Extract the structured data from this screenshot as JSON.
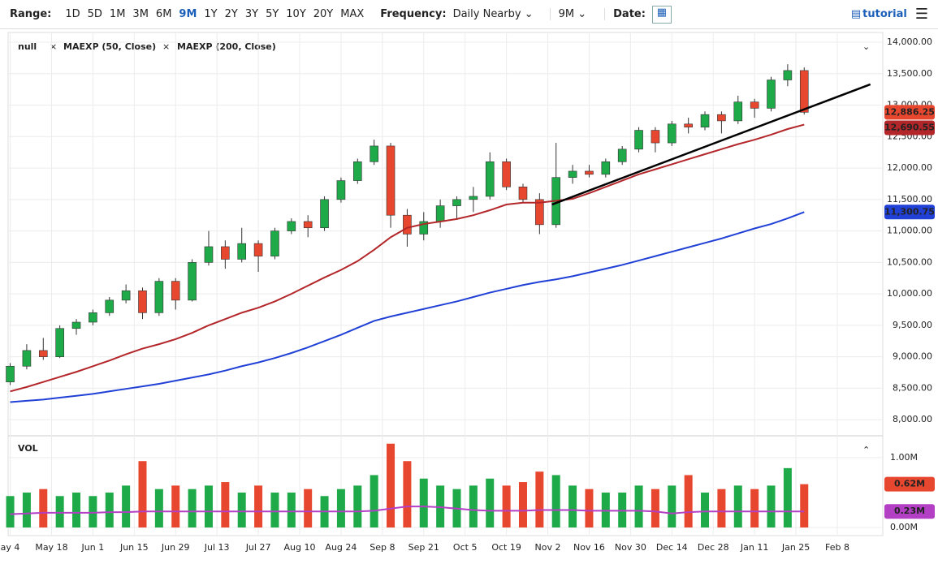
{
  "toolbar": {
    "range_label": "Range:",
    "ranges": [
      "1D",
      "5D",
      "1M",
      "3M",
      "6M",
      "9M",
      "1Y",
      "2Y",
      "3Y",
      "5Y",
      "10Y",
      "20Y",
      "MAX"
    ],
    "active_range": "9M",
    "frequency_label": "Frequency:",
    "frequency": "Daily Nearby",
    "period": "9M",
    "date_label": "Date:",
    "tutorial": "tutorial"
  },
  "chart_data": {
    "type": "candlestick",
    "name": "null",
    "up_color": "#1faa4a",
    "down_color": "#e8472f",
    "grid": true,
    "x": [
      0,
      4,
      8,
      12,
      16,
      20,
      24,
      28,
      32,
      36,
      40,
      44,
      48,
      52,
      56,
      60,
      64,
      68,
      72,
      76,
      80,
      84,
      88,
      92,
      96,
      100,
      104,
      108,
      112,
      116,
      120,
      124,
      128,
      132,
      136,
      140,
      144,
      148,
      152,
      156,
      160,
      164,
      168,
      172,
      176,
      180,
      184,
      188,
      192
    ],
    "open": [
      8600,
      8850,
      9100,
      9000,
      9450,
      9550,
      9700,
      9900,
      10050,
      9700,
      10200,
      9900,
      10500,
      10750,
      10550,
      10800,
      10600,
      11000,
      11150,
      11050,
      11500,
      11800,
      12100,
      12350,
      11250,
      10950,
      11150,
      11400,
      11500,
      11550,
      12100,
      11700,
      11500,
      11100,
      11850,
      11950,
      11900,
      12100,
      12300,
      12600,
      12400,
      12700,
      12650,
      12850,
      12750,
      13050,
      12950,
      13400,
      13550
    ],
    "high": [
      8900,
      9200,
      9300,
      9500,
      9600,
      9750,
      9950,
      10150,
      10100,
      10250,
      10250,
      10550,
      11000,
      10850,
      11050,
      10850,
      11050,
      11200,
      11250,
      11550,
      11850,
      12150,
      12450,
      12400,
      11350,
      11300,
      11500,
      11550,
      11700,
      12250,
      12150,
      11750,
      11600,
      12400,
      12050,
      12050,
      12150,
      12350,
      12650,
      12650,
      12750,
      12800,
      12900,
      12900,
      13150,
      13100,
      13450,
      13650,
      13600
    ],
    "low": [
      8550,
      8800,
      8950,
      8980,
      9350,
      9500,
      9650,
      9850,
      9600,
      9650,
      9750,
      9880,
      10450,
      10400,
      10500,
      10350,
      10550,
      10950,
      10900,
      11000,
      11450,
      11750,
      12050,
      11050,
      10750,
      10850,
      11050,
      11200,
      11300,
      11500,
      11650,
      11450,
      10950,
      11050,
      11750,
      11850,
      11850,
      12050,
      12250,
      12250,
      12350,
      12550,
      12600,
      12550,
      12700,
      12800,
      12900,
      13300,
      12850
    ],
    "close": [
      8850,
      9100,
      9000,
      9450,
      9550,
      9700,
      9900,
      10050,
      9700,
      10200,
      9900,
      10500,
      10750,
      10550,
      10800,
      10600,
      11000,
      11150,
      11050,
      11500,
      11800,
      12100,
      12350,
      11250,
      10950,
      11150,
      11400,
      11500,
      11550,
      12100,
      11700,
      11500,
      11100,
      11850,
      11950,
      11900,
      12100,
      12300,
      12600,
      12400,
      12700,
      12650,
      12850,
      12750,
      13050,
      12950,
      13400,
      13550,
      12886.25
    ],
    "close_labels": [
      null,
      null,
      null,
      null,
      null,
      null,
      null,
      null,
      null,
      null,
      null,
      null,
      null,
      null,
      null,
      null,
      null,
      null,
      null,
      null,
      null,
      null,
      null,
      null,
      null,
      null,
      null,
      null,
      null,
      null,
      null,
      null,
      null,
      null,
      null,
      null,
      null,
      null,
      null,
      null,
      null,
      null,
      null,
      null,
      null,
      null,
      null,
      null,
      "12,886.25"
    ],
    "series": [
      {
        "name": "MAEXP (50, Close)",
        "color": "#b3262a",
        "values": [
          8450,
          8520,
          8600,
          8680,
          8760,
          8850,
          8940,
          9040,
          9130,
          9200,
          9280,
          9380,
          9500,
          9600,
          9700,
          9780,
          9880,
          10000,
          10130,
          10260,
          10380,
          10520,
          10700,
          10900,
          11050,
          11110,
          11150,
          11190,
          11250,
          11330,
          11420,
          11450,
          11450,
          11480,
          11510,
          11600,
          11700,
          11800,
          11900,
          11980,
          12060,
          12140,
          12220,
          12300,
          12380,
          12450,
          12530,
          12620,
          12690.55
        ],
        "value_labels": [
          null,
          null,
          null,
          null,
          null,
          null,
          null,
          null,
          null,
          null,
          null,
          null,
          null,
          null,
          null,
          null,
          null,
          null,
          null,
          null,
          null,
          null,
          null,
          null,
          null,
          null,
          null,
          null,
          null,
          null,
          null,
          null,
          null,
          null,
          null,
          null,
          null,
          null,
          null,
          null,
          null,
          null,
          null,
          null,
          null,
          null,
          null,
          null,
          "12,690.55"
        ]
      },
      {
        "name": "MAEXP (200, Close)",
        "color": "#2141d6",
        "values": [
          8280,
          8300,
          8320,
          8350,
          8380,
          8410,
          8450,
          8490,
          8530,
          8570,
          8620,
          8670,
          8720,
          8780,
          8850,
          8910,
          8980,
          9060,
          9150,
          9250,
          9350,
          9460,
          9570,
          9640,
          9700,
          9760,
          9820,
          9880,
          9950,
          10020,
          10080,
          10140,
          10190,
          10230,
          10280,
          10340,
          10400,
          10460,
          10530,
          10600,
          10670,
          10740,
          10810,
          10880,
          10960,
          11040,
          11110,
          11200,
          11300.75
        ],
        "value_labels": [
          null,
          null,
          null,
          null,
          null,
          null,
          null,
          null,
          null,
          null,
          null,
          null,
          null,
          null,
          null,
          null,
          null,
          null,
          null,
          null,
          null,
          null,
          null,
          null,
          null,
          null,
          null,
          null,
          null,
          null,
          null,
          null,
          null,
          null,
          null,
          null,
          null,
          null,
          null,
          null,
          null,
          null,
          null,
          null,
          null,
          null,
          null,
          null,
          "11,300.75"
        ]
      }
    ],
    "trendline": {
      "x": [
        131,
        208
      ],
      "values": [
        11420,
        13330
      ],
      "color": "#000000"
    },
    "xlim": [
      -0.5,
      211
    ],
    "xticks": [
      {
        "value": 0,
        "label": "ay 4"
      },
      {
        "value": 10,
        "label": "May 18"
      },
      {
        "value": 20,
        "label": "Jun 1"
      },
      {
        "value": 30,
        "label": "Jun 15"
      },
      {
        "value": 40,
        "label": "Jun 29"
      },
      {
        "value": 50,
        "label": "Jul 13"
      },
      {
        "value": 60,
        "label": "Jul 27"
      },
      {
        "value": 70,
        "label": "Aug 10"
      },
      {
        "value": 80,
        "label": "Aug 24"
      },
      {
        "value": 90,
        "label": "Sep 8"
      },
      {
        "value": 100,
        "label": "Sep 21"
      },
      {
        "value": 110,
        "label": "Oct 5"
      },
      {
        "value": 120,
        "label": "Oct 19"
      },
      {
        "value": 130,
        "label": "Nov 2"
      },
      {
        "value": 140,
        "label": "Nov 16"
      },
      {
        "value": 150,
        "label": "Nov 30"
      },
      {
        "value": 160,
        "label": "Dec 14"
      },
      {
        "value": 170,
        "label": "Dec 28"
      },
      {
        "value": 180,
        "label": "Jan 11"
      },
      {
        "value": 190,
        "label": "Jan 25"
      },
      {
        "value": 200,
        "label": "Feb 8"
      }
    ],
    "ylim": [
      7770,
      14155
    ],
    "yticks": [
      {
        "value": 8000,
        "label": "8,000.00"
      },
      {
        "value": 8500,
        "label": "8,500.00"
      },
      {
        "value": 9000,
        "label": "9,000.00"
      },
      {
        "value": 9500,
        "label": "9,500.00"
      },
      {
        "value": 10000,
        "label": "10,000.00"
      },
      {
        "value": 10500,
        "label": "10,500.00"
      },
      {
        "value": 11000,
        "label": "11,000.00"
      },
      {
        "value": 11500,
        "label": "11,500.00"
      },
      {
        "value": 12000,
        "label": "12,000.00"
      },
      {
        "value": 12500,
        "label": "12,500.00"
      },
      {
        "value": 13000,
        "label": "13,000.00"
      },
      {
        "value": 13500,
        "label": "13,500.00"
      },
      {
        "value": 14000,
        "label": "14,000.00"
      }
    ],
    "volume_panel": {
      "title": "VOL",
      "values": [
        0.45,
        0.5,
        0.55,
        0.45,
        0.5,
        0.45,
        0.5,
        0.6,
        0.95,
        0.55,
        0.6,
        0.55,
        0.6,
        0.65,
        0.5,
        0.6,
        0.5,
        0.5,
        0.55,
        0.45,
        0.55,
        0.6,
        0.75,
        1.2,
        0.95,
        0.7,
        0.6,
        0.55,
        0.6,
        0.7,
        0.6,
        0.65,
        0.8,
        0.75,
        0.6,
        0.55,
        0.5,
        0.5,
        0.6,
        0.55,
        0.6,
        0.75,
        0.5,
        0.55,
        0.6,
        0.55,
        0.6,
        0.85,
        0.62
      ],
      "value_labels": [
        null,
        null,
        null,
        null,
        null,
        null,
        null,
        null,
        null,
        null,
        null,
        null,
        null,
        null,
        null,
        null,
        null,
        null,
        null,
        null,
        null,
        null,
        null,
        null,
        null,
        null,
        null,
        null,
        null,
        null,
        null,
        null,
        null,
        null,
        null,
        null,
        null,
        null,
        null,
        null,
        null,
        null,
        null,
        null,
        null,
        null,
        null,
        null,
        "0.62M"
      ],
      "ma": {
        "color": "#b23fc4",
        "values": [
          0.19,
          0.2,
          0.21,
          0.21,
          0.21,
          0.21,
          0.22,
          0.22,
          0.23,
          0.23,
          0.23,
          0.23,
          0.23,
          0.23,
          0.23,
          0.23,
          0.23,
          0.23,
          0.23,
          0.23,
          0.23,
          0.23,
          0.24,
          0.27,
          0.3,
          0.3,
          0.29,
          0.27,
          0.25,
          0.24,
          0.24,
          0.24,
          0.25,
          0.25,
          0.25,
          0.24,
          0.24,
          0.24,
          0.24,
          0.23,
          0.2,
          0.22,
          0.23,
          0.23,
          0.23,
          0.23,
          0.23,
          0.23,
          0.23
        ],
        "value_labels": [
          null,
          null,
          null,
          null,
          null,
          null,
          null,
          null,
          null,
          null,
          null,
          null,
          null,
          null,
          null,
          null,
          null,
          null,
          null,
          null,
          null,
          null,
          null,
          null,
          null,
          null,
          null,
          null,
          null,
          null,
          null,
          null,
          null,
          null,
          null,
          null,
          null,
          null,
          null,
          null,
          null,
          null,
          null,
          null,
          null,
          null,
          null,
          null,
          "0.23M"
        ]
      },
      "ylim": [
        0,
        1.22
      ],
      "yticks": [
        {
          "value": 0,
          "label": "0.00M"
        },
        {
          "value": 1,
          "label": "1.00M"
        }
      ]
    }
  }
}
